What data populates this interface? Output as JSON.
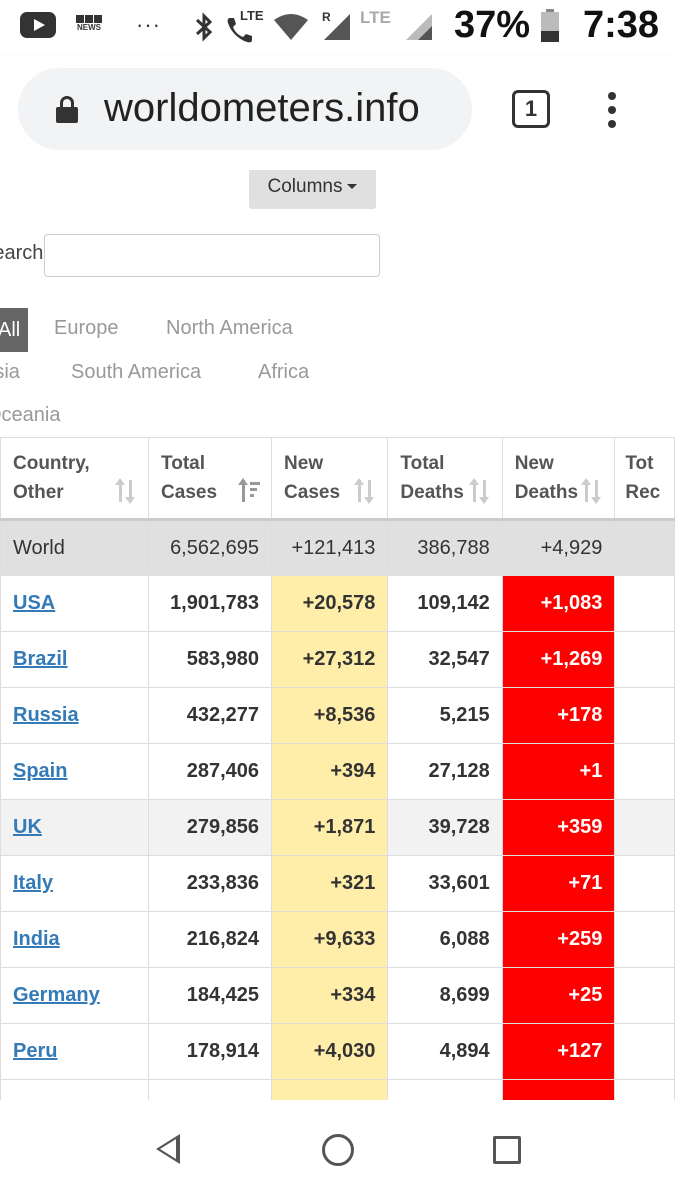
{
  "status_bar": {
    "battery_percent": "37%",
    "battery_level": 0.37,
    "time": "7:38",
    "network_label_1": "LTE",
    "network_label_2": "LTE",
    "roaming_label": "R",
    "bbc_label": "NEWS",
    "more_indicator": "···",
    "icons": [
      "youtube-icon",
      "bbc-news-icon",
      "bluetooth-icon",
      "call-lte-icon",
      "wifi-icon",
      "signal-roaming-icon",
      "signal-lte-icon",
      "battery-icon"
    ]
  },
  "browser": {
    "url": "worldometers.info",
    "tab_count": "1"
  },
  "page": {
    "columns_button": "Columns",
    "search_label": "Search:",
    "search_value": "",
    "region_tabs": [
      "All",
      "Europe",
      "North America",
      "Asia",
      "South America",
      "Africa",
      "Oceania"
    ],
    "active_region": "All"
  },
  "table": {
    "headers": [
      [
        "Country,",
        "Other"
      ],
      [
        "Total",
        "Cases"
      ],
      [
        "New",
        "Cases"
      ],
      [
        "Total",
        "Deaths"
      ],
      [
        "New",
        "Deaths"
      ],
      [
        "Tot",
        "Rec"
      ]
    ],
    "rows": [
      {
        "country": "World",
        "total_cases": "6,562,695",
        "new_cases": "+121,413",
        "total_deaths": "386,788",
        "new_deaths": "+4,929"
      },
      {
        "country": "USA",
        "total_cases": "1,901,783",
        "new_cases": "+20,578",
        "total_deaths": "109,142",
        "new_deaths": "+1,083"
      },
      {
        "country": "Brazil",
        "total_cases": "583,980",
        "new_cases": "+27,312",
        "total_deaths": "32,547",
        "new_deaths": "+1,269"
      },
      {
        "country": "Russia",
        "total_cases": "432,277",
        "new_cases": "+8,536",
        "total_deaths": "5,215",
        "new_deaths": "+178"
      },
      {
        "country": "Spain",
        "total_cases": "287,406",
        "new_cases": "+394",
        "total_deaths": "27,128",
        "new_deaths": "+1"
      },
      {
        "country": "UK",
        "total_cases": "279,856",
        "new_cases": "+1,871",
        "total_deaths": "39,728",
        "new_deaths": "+359"
      },
      {
        "country": "Italy",
        "total_cases": "233,836",
        "new_cases": "+321",
        "total_deaths": "33,601",
        "new_deaths": "+71"
      },
      {
        "country": "India",
        "total_cases": "216,824",
        "new_cases": "+9,633",
        "total_deaths": "6,088",
        "new_deaths": "+259"
      },
      {
        "country": "Germany",
        "total_cases": "184,425",
        "new_cases": "+334",
        "total_deaths": "8,699",
        "new_deaths": "+25"
      },
      {
        "country": "Peru",
        "total_cases": "178,914",
        "new_cases": "+4,030",
        "total_deaths": "4,894",
        "new_deaths": "+127"
      }
    ]
  },
  "nav_bar": {
    "icons": [
      "back-icon",
      "home-icon",
      "recents-icon"
    ]
  }
}
